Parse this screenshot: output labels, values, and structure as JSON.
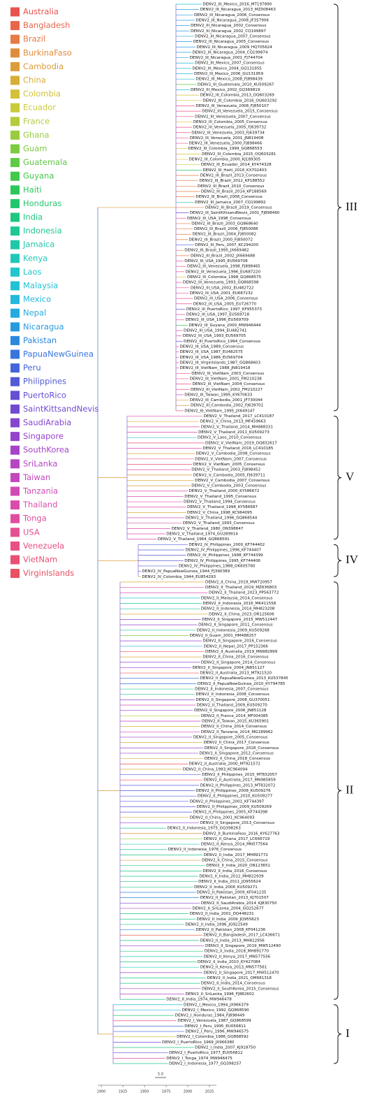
{
  "legend": [
    {
      "name": "Australia",
      "color": "#e8524e"
    },
    {
      "name": "Bangladesh",
      "color": "#e8654a"
    },
    {
      "name": "Brazil",
      "color": "#e77a45"
    },
    {
      "name": "BurkinaFaso",
      "color": "#e08c3e"
    },
    {
      "name": "Cambodia",
      "color": "#dc9c38"
    },
    {
      "name": "China",
      "color": "#d8ae36"
    },
    {
      "name": "Colombia",
      "color": "#d3c038"
    },
    {
      "name": "Ecuador",
      "color": "#c9cb3a"
    },
    {
      "name": "France",
      "color": "#b2cc3c"
    },
    {
      "name": "Ghana",
      "color": "#98cc3e"
    },
    {
      "name": "Guam",
      "color": "#7ccb40"
    },
    {
      "name": "Guatemala",
      "color": "#5fca44"
    },
    {
      "name": "Guyana",
      "color": "#42c84b"
    },
    {
      "name": "Haiti",
      "color": "#2cc75a"
    },
    {
      "name": "Honduras",
      "color": "#22c66c"
    },
    {
      "name": "India",
      "color": "#1ec680"
    },
    {
      "name": "Indonesia",
      "color": "#1ec794"
    },
    {
      "name": "Jamaica",
      "color": "#1fc8a8"
    },
    {
      "name": "Kenya",
      "color": "#20c8bb"
    },
    {
      "name": "Laos",
      "color": "#22c7cb"
    },
    {
      "name": "Malaysia",
      "color": "#22c2d5"
    },
    {
      "name": "Mexico",
      "color": "#23b8dc"
    },
    {
      "name": "Nepal",
      "color": "#24aadf"
    },
    {
      "name": "Nicaragua",
      "color": "#279adf"
    },
    {
      "name": "Pakistan",
      "color": "#2d88df"
    },
    {
      "name": "PapuaNewGuinea",
      "color": "#3775dd"
    },
    {
      "name": "Peru",
      "color": "#4466db"
    },
    {
      "name": "Philippines",
      "color": "#535ad8"
    },
    {
      "name": "PuertoRico",
      "color": "#6350d5"
    },
    {
      "name": "SaintKittsandNevis",
      "color": "#7349d2"
    },
    {
      "name": "SaudiArabia",
      "color": "#8445cf"
    },
    {
      "name": "Singapore",
      "color": "#9543cc"
    },
    {
      "name": "SouthKorea",
      "color": "#a643c8"
    },
    {
      "name": "SriLanka",
      "color": "#b545c3"
    },
    {
      "name": "Taiwan",
      "color": "#c447bd"
    },
    {
      "name": "Tanzania",
      "color": "#d04ab5"
    },
    {
      "name": "Thailand",
      "color": "#da4cab"
    },
    {
      "name": "Tonga",
      "color": "#e14ea0"
    },
    {
      "name": "USA",
      "color": "#e55093"
    },
    {
      "name": "Venezuela",
      "color": "#e85084"
    },
    {
      "name": "VietNam",
      "color": "#e95074"
    },
    {
      "name": "VirginIslands",
      "color": "#e95062"
    }
  ],
  "clades": [
    {
      "label": "III",
      "leaves": [
        "DENV2_III_Mexico_2016_MT197890",
        "DENV2_III_Nicaragua_2013_MZ008463",
        "DENV2_III_Nicaragua_2006_Consensus",
        "DENV2_III_Nicaragua_2008_JF357906",
        "DENV2_III_Nicaragua_2002_Consensus",
        "DENV2_III_Nicaragua_2002_CQ199897",
        "DENV2_III_Nicaragua_2007_Consensus",
        "DENV2_III_Nicaragua_2005_Consensus",
        "DENV2_III_Nicaragua_2009_HQ705624",
        "DENV2_III_Nicaragua_2004_CQ199874",
        "DENV2_III_Nicaragua_2001_FJ744704",
        "DENV2_III_Mexico_2007_Consensus",
        "DENV2_III_Mexico_2004_GQ131955",
        "DENV2_III_Mexico_2006_GU131959",
        "DENV2_III_Mexico_2008_FJ898439",
        "DENV2_III_Guatemala_2010_KU509267",
        "DENV2_III_Mexico_2002_GQ369819",
        "DENV2_III_Colombia_2013_OQ603269",
        "DENV2_III_Colombia_2016_OQ603292",
        "DENV2_III_Venezuela_2008_FJ850107",
        "DENV2_III_Venezuela_2015_Consensus",
        "DENV2_III_Venezuela_2007_Consensus",
        "DENV2_III_Colombia_2005_Consensus",
        "DENV2_III_Venezuela_2005_FJ639732",
        "DENV2_III_Venezuela_2003_FJ639734",
        "DENV2_III_Venezuela_2001_JN819408",
        "DENV2_III_Venezuela_2000_FJ898466",
        "DENV2_III_Colombia_1999_GQ868553",
        "DENV2_III_Colombia_2015_OQ603281",
        "DENV2_III_Colombia_2000_KJ189305",
        "DENV2_III_Ecuador_2014_KY474328",
        "DENV2_III_Haiti_2016_KX702403",
        "DENV2_III_Brazil_2013_Consensus",
        "DENV2_III_Brazil_2012_KP188552",
        "DENV2_III_Brazil_2010_Consensus",
        "DENV2_III_Brazil_2014_KP188569",
        "DENV2_III_Brazil_2008_Consensus",
        "DENV2_III_Jamaica_2007_CQ199892",
        "DENV2_III_Brazil_2019_Consensus",
        "DENV2_III_SaintKittsandNevis_2001_FJ898460",
        "DENV2_III_USA_1998_Consensus",
        "DENV2_III_Brazil_2003_GQ868640",
        "DENV2_III_Brazil_2006_FJ850088",
        "DENV2_III_Brazil_2004_FJ850082",
        "DENV2_III_Brazil_2000_FJ850072",
        "DENV2_III_Peru_2007_KC294200",
        "DENV2_III_Brazil_1995_JX669482",
        "DENV2_III_Brazil_2002_JX669488",
        "DENV2_III_USA_1995_EU569708",
        "DENV2_III_Venezuela_1998_FJ898465",
        "DENV2_III_Venezuela_1996_EU687220",
        "DENV2_III_Colombia_1998_GQ868575",
        "DENV2_III_Venezuela_1993_GQ868598",
        "DENV2_III_USA_2002_EU482722",
        "DENV2_III_USA_2001_EU687232",
        "DENV2_III_USA_2006_Consensus",
        "DENV2_III_USA_2005_EU726770",
        "DENV2_III_PuertoRico_1997_KF955373",
        "DENV2_III_USA_1997_EU569718",
        "DENV2_III_USA_1996_EU569709",
        "DENV2_III_Guyana_2000_MW946444",
        "DENV2_III_USA_1994_EU482741",
        "DENV2_III_USA_1993_EU569705",
        "DENV2_III_PuertoRico_1994_Consensus",
        "DENV2_III_USA_1989_Consensus",
        "DENV2_III_USA_1987_EU482575",
        "DENV2_III_USA_1986_EU569704",
        "DENV2_III_VirginIslands_1987_GQ868603",
        "DENV2_III_VietNam_1988_JN819418",
        "DENV2_III_VietNam_2003_Consensus",
        "DENV2_III_VietNam_2001_FM210238",
        "DENV2_III_VietNam_2004_Consensus",
        "DENV2_III_VietNam_2002_FM210227",
        "DENV2_III_Taiwan_1995_KY670633",
        "DENV2_III_Cambodia_2001_JF730044",
        "DENV2_III_Cambodia_2002_FJ639701",
        "DENV2_III_VietNam_1995_JX649147"
      ]
    },
    {
      "label": "V",
      "leaves": [
        "DENV2_V_Thailand_2017_LC410187",
        "DENV2_V_China_2013_MF459663",
        "DENV2_V_Thailand_2014_MH888331",
        "DENV2_V_Thailand_2011_KU509273",
        "DENV2_V_Laos_2010_Consensus",
        "DENV2_V_VietNam_2019_OQ832617",
        "DENV2_V_Thailand_2016_LC410185",
        "DENV2_V_Cambodia_2008_Consensus",
        "DENV2_V_VietNam_2007_Consensus",
        "DENV2_V_VietNam_2005_Consensus",
        "DENV2_V_Thailand_2003_FJ898452",
        "DENV2_V_Cambodia_2005_FJ639711",
        "DENV2_V_Cambodia_2007_Consensus",
        "DENV2_V_Cambodia_2003_Consensus",
        "DENV2_V_Thailand_2000_KY586672",
        "DENV2_V_Thailand_1995_Consensus",
        "DENV2_V_Thailand_1994_Consensus",
        "DENV2_V_Thailand_1998_KY586687",
        "DENV2_V_China_1998_KC964095",
        "DENV2_V_Thailand_1996_GQ868544",
        "DENV2_V_Thailand_1993_Consensus",
        "DENV2_V_Thailand_1980_ON398847",
        "DENV2_V_Thailand_1974_GU289914",
        "DENV2_V_Thailand_1964_GQ868591"
      ]
    },
    {
      "label": "IV",
      "leaves": [
        "DENV2_IV_Philippines_2000_KF744402",
        "DENV2_IV_Philippines_1996_KF744407",
        "DENV2_IV_Philippines_1998_KF744399",
        "DENV2_IV_Philippines_1995_KF744406",
        "DENV2_IV_Philippines_1988_OK605760",
        "DENV2_IV_PapuaNewGuinea_1944_FJ390389",
        "DENV2_IV_Colombia_1944_EU854293"
      ]
    },
    {
      "label": "II",
      "leaves": [
        "DENV2_II_China_2019_MW720957",
        "DENV2_II_Thailand_2019_MZ636803",
        "DENV2_II_Thailand_2023_PP563772",
        "DENV2_II_Malaysia_2014_Consensus",
        "DENV2_II_Indonesia_2016_MK411558",
        "DENV2_II_Indonesia_2014_MH823208",
        "DENV2_II_China_2023_OR125606",
        "DENV2_II_Singapore_2015_MW512447",
        "DENV2_II_Singapore_2011_Consensus",
        "DENV2_II_Indonesia_2009_KU509268",
        "DENV2_II_Guam_2001_HM488257",
        "DENV2_II_Singapore_2016_Consensus",
        "DENV2_II_Nepal_2017_PP152366",
        "DENV2_II_Australia_2019_MN982899",
        "DENV2_II_China_2016_Consensus",
        "DENV2_II_Singapore_2014_Consensus",
        "DENV2_II_Singapore_2004_JN851127",
        "DENV2_II_Australia_2013_MT921520",
        "DENV2_II_PapuaNewGuinea_2013_KU537845",
        "DENV2_II_PapuaNewGuinea_2010_KY794785",
        "DENV2_II_Indonesia_2007_Consensus",
        "DENV2_II_Indonesia_2008_Consensus",
        "DENV2_II_Singapore_2008_GU370051",
        "DENV2_II_Thailand_2009_KU509270",
        "DENV2_II_Singapore_2006_JN851128",
        "DENV2_II_France_2014_MF004385",
        "DENV2_II_Taiwan_2015_KU365901",
        "DENV2_II_China_2014_Consensus",
        "DENV2_II_Tanzania_2014_MG189962",
        "DENV2_II_Singapore_2005_Consensus",
        "DENV2_II_China_2017_Consensus",
        "DENV2_II_Singapore_2018_Consensus",
        "DENV2_II_Singapore_2012_Consensus",
        "DENV2_II_China_2018_Consensus",
        "DENV2_II_Australia_2000_MT921572",
        "DENV2_II_China_1993_KC964094",
        "DENV2_II_Philippines_2015_MT832057",
        "DENV2_II_Australia_2017_MN985859",
        "DENV2_II_Philippines_2013_MT832072",
        "DENV2_II_Philippines_2008_KU509276",
        "DENV2_II_Philippines_2010_KU509277",
        "DENV2_II_Philippines_2001_KF744397",
        "DENV2_II_Philippines_2009_KU509269",
        "DENV2_II_Philippines_2005_KF744398",
        "DENV2_II_China_2001_KC964093",
        "DENV2_II_Singapore_2013_Consensus",
        "DENV2_II_Indonesia_1975_GQ398263",
        "DENV2_II_BurkinaFaso_2016_KY627763",
        "DENV2_II_Ghana_2017_LC666719",
        "DENV2_II_Kenya_2014_MN577564",
        "DENV2_II_Indonesia_1976_Consensus",
        "DENV2_II_India_2017_MH891772",
        "DENV2_II_China_2015_Consensus",
        "DENV2_II_India_2020_ON123651",
        "DENV2_II_India_2016_Consensus",
        "DENV2_II_India_2012_MH822939",
        "DENV2_II_India_2011_JQ955624",
        "DENV2_II_India_2006_KU509271",
        "DENV2_II_Pakistan_2009_KF041235",
        "DENV2_II_Pakistan_2013_KJ701507",
        "DENV2_II_SaudiArabia_2014_KJ830750",
        "DENV2_II_SriLanka_2004_GQ252677",
        "DENV2_II_India_2001_DQ448231",
        "DENV2_II_India_2009_JQ955623",
        "DENV2_II_India_1996_JQ922549",
        "DENV2_II_Pakistan_2008_KF041236",
        "DENV2_II_Bangladesh_2017_LC436671",
        "DENV2_II_India_2013_MH822956",
        "DENV2_II_Singapore_2019_MW512490",
        "DENV2_II_India_2018_MH891770",
        "DENV2_II_Kenya_2017_MN577556",
        "DENV2_II_India_2010_KY427084",
        "DENV2_II_Kenya_2013_MN577561",
        "DENV2_II_Singapore_2017_MW512470",
        "DENV2_II_India_2021_OM681318",
        "DENV2_II_India_2014_Consensus",
        "DENV2_II_SouthKorea_2015_Consensus",
        "DENV2_II_SriLanka_1996_FJ882602",
        "DENV2_II_India_1974_MW946478"
      ]
    },
    {
      "label": "I",
      "leaves": [
        "DENV2_I_Mexico_1994_JX966379",
        "DENV2_I_Mexico_1992_GQ868590",
        "DENV2_I_Honduras_1984_FJ898449",
        "DENV2_I_Venezuela_1987_GQ868599",
        "DENV2_I_Peru_1995_EU056811",
        "DENV2_I_Peru_1996_MW946575",
        "DENV2_I_Colombia_1986_GQ868592",
        "DENV2_I_PuertoRico_1969_JX966380",
        "DENV2_I_India_2007_KJ918750",
        "DENV2_I_PuertoRico_1977_EU056812",
        "DENV2_I_Tonga_1974_MW946475",
        "DENV2_I_Indonesia_1977_GQ398257"
      ]
    }
  ],
  "axis": {
    "ticks": [
      1900,
      1925,
      1950,
      1975,
      2000,
      2025
    ],
    "scale_label": "5.0"
  }
}
